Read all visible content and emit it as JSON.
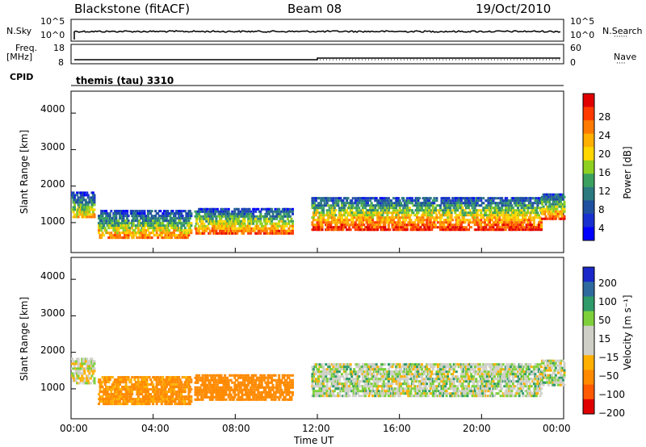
{
  "header": {
    "station": "Blackstone (fitACF)",
    "beam": "Beam 08",
    "date": "19/Oct/2010"
  },
  "strip_nsky": {
    "label": "N.Sky",
    "ytick_top": "10^5",
    "ytick_bottom": "10^0",
    "right_tick_top": "10^5",
    "right_tick_bottom": "10^0",
    "right_label": "N.Search",
    "right_legend": "······"
  },
  "strip_freq": {
    "label_line1": "Freq.",
    "label_line2": "[MHz]",
    "ytick_top": "18",
    "ytick_bottom": "8",
    "right_tick_top": "60",
    "right_tick_bottom": "0",
    "right_label": "Nave",
    "right_legend": "····"
  },
  "cpid": {
    "label": "CPID",
    "value": "themis (tau) 3310"
  },
  "xaxis": {
    "label": "Time UT",
    "ticks": [
      "00:00",
      "04:00",
      "08:00",
      "12:00",
      "16:00",
      "20:00",
      "00:00"
    ]
  },
  "power_panel": {
    "ylabel": "Slant Range [km]",
    "yticks": [
      "4000",
      "3000",
      "2000",
      "1000"
    ],
    "colorbar_label": "Power [dB]",
    "colorbar_ticks": [
      "28",
      "24",
      "20",
      "16",
      "12",
      "8",
      "4"
    ],
    "colorbar_colors": [
      "#e00000",
      "#ff3a00",
      "#ff7a00",
      "#ffb000",
      "#ffd700",
      "#8ed020",
      "#3aa060",
      "#2a7a80",
      "#2050a0",
      "#1830d0",
      "#0000ff"
    ]
  },
  "velocity_panel": {
    "ylabel": "Slant Range [km]",
    "yticks": [
      "4000",
      "3000",
      "2000",
      "1000"
    ],
    "colorbar_label": "Velocity [m s⁻¹]",
    "colorbar_ticks": [
      "200",
      "100",
      "50",
      "15",
      "−15",
      "−50",
      "−100",
      "−200"
    ],
    "colorbar_colors": [
      "#1a28c8",
      "#2e6a9e",
      "#2f9a6a",
      "#7ed03a",
      "#cfcfc8",
      "#cfcfc8",
      "#ffb000",
      "#ff8a00",
      "#ff5a00",
      "#e00000"
    ]
  },
  "chart_data": {
    "type": "heatmap",
    "title": "Blackstone (fitACF)   Beam 08   19/Oct/2010",
    "xlabel": "Time UT",
    "ylabel": "Slant Range [km]",
    "x_range_hours": [
      0,
      24
    ],
    "y_range_km": [
      180,
      4600
    ],
    "power_echo_regions": [
      {
        "start_h": 0.0,
        "end_h": 1.1,
        "range_km": [
          1150,
          1850
        ],
        "power_db": 18
      },
      {
        "start_h": 1.3,
        "end_h": 5.8,
        "range_km": [
          600,
          1350
        ],
        "power_db": 20
      },
      {
        "start_h": 6.0,
        "end_h": 10.8,
        "range_km": [
          700,
          1400
        ],
        "power_db": 22
      },
      {
        "start_h": 11.7,
        "end_h": 22.9,
        "range_km": [
          800,
          1700
        ],
        "power_db": 24
      },
      {
        "start_h": 22.9,
        "end_h": 24.0,
        "range_km": [
          1100,
          1800
        ],
        "power_db": 22
      }
    ],
    "velocity_echo_regions": [
      {
        "start_h": 0.0,
        "end_h": 1.1,
        "range_km": [
          1150,
          1850
        ],
        "velocity": -5
      },
      {
        "start_h": 1.3,
        "end_h": 5.8,
        "range_km": [
          600,
          1350
        ],
        "velocity": -60
      },
      {
        "start_h": 6.0,
        "end_h": 10.8,
        "range_km": [
          700,
          1400
        ],
        "velocity": -70
      },
      {
        "start_h": 11.7,
        "end_h": 22.9,
        "range_km": [
          800,
          1700
        ],
        "velocity": 0
      },
      {
        "start_h": 22.9,
        "end_h": 24.0,
        "range_km": [
          1100,
          1800
        ],
        "velocity": 0
      }
    ]
  }
}
